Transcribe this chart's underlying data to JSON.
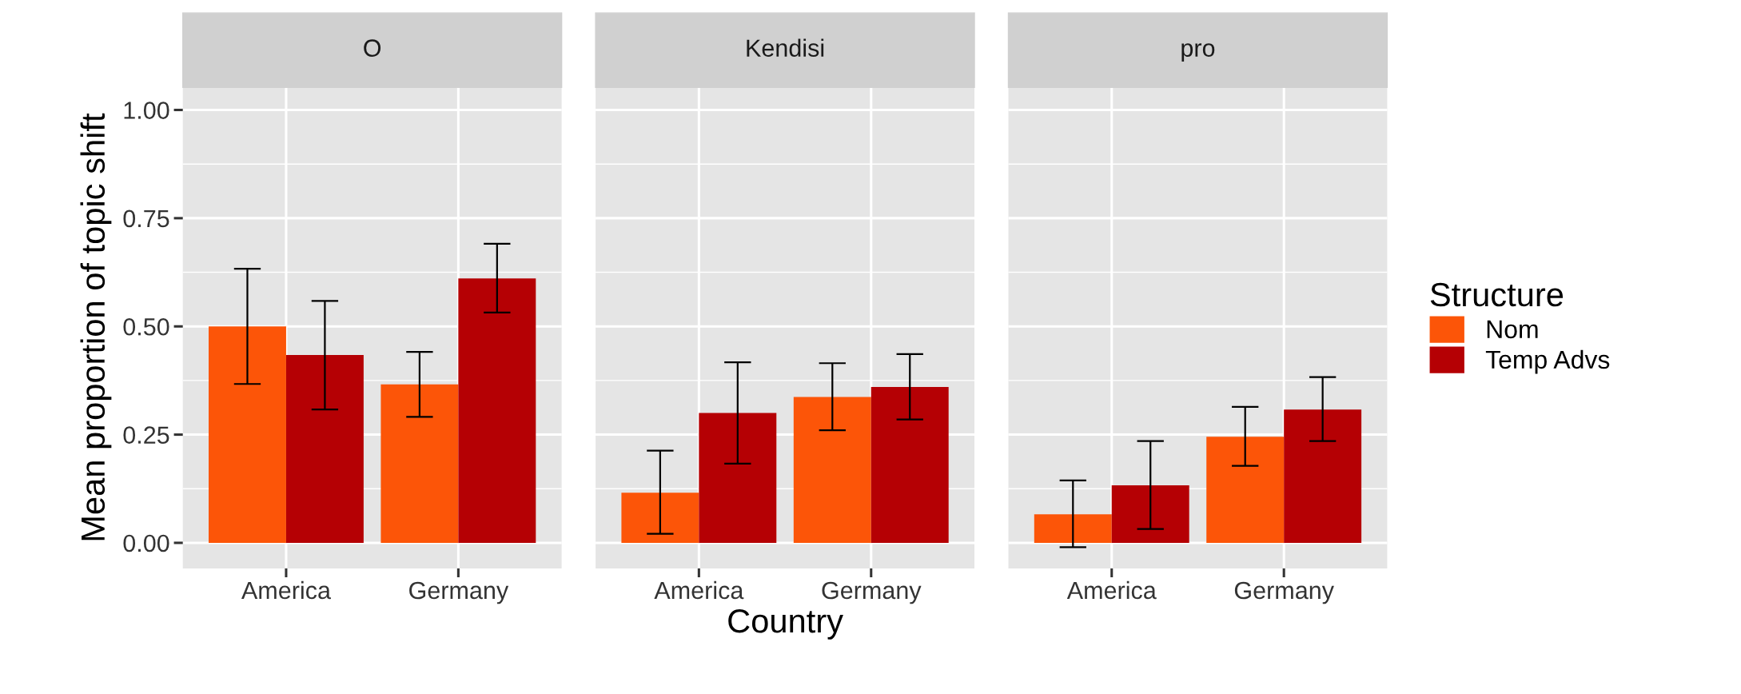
{
  "chart_data": [
    {
      "type": "bar",
      "title": "O",
      "ylabel": "Mean proportion of topic shift",
      "categories": [
        "America",
        "Germany"
      ],
      "ylim": [
        -0.059,
        1.052
      ],
      "yticks": [
        {
          "value": 0,
          "label": "0.00"
        },
        {
          "value": 0.25,
          "label": "0.25"
        },
        {
          "value": 0.5,
          "label": "0.50"
        },
        {
          "value": 0.75,
          "label": "0.75"
        },
        {
          "value": 1,
          "label": "1.00"
        }
      ],
      "grid": true,
      "series": [
        {
          "color": "#fc5508",
          "values": [
            0.5,
            0.366
          ],
          "errors": [
            [
              0.367,
              0.633
            ],
            [
              0.291,
              0.441
            ]
          ]
        },
        {
          "color": "#b50004",
          "values": [
            0.434,
            0.611
          ],
          "errors": [
            [
              0.308,
              0.559
            ],
            [
              0.532,
              0.691
            ]
          ]
        }
      ]
    },
    {
      "type": "bar",
      "title": "Kendisi",
      "xlabel": "Country",
      "categories": [
        "America",
        "Germany"
      ],
      "ylim": [
        -0.059,
        1.052
      ],
      "yticks": [
        {
          "value": 0,
          "label": null
        },
        {
          "value": 0.25,
          "label": null
        },
        {
          "value": 0.5,
          "label": null
        },
        {
          "value": 0.75,
          "label": null
        },
        {
          "value": 1,
          "label": null
        }
      ],
      "grid": true,
      "tick_labels": "x",
      "series": [
        {
          "color": "#fc5508",
          "values": [
            0.116,
            0.337
          ],
          "errors": [
            [
              0.021,
              0.213
            ],
            [
              0.26,
              0.415
            ]
          ]
        },
        {
          "color": "#b50004",
          "values": [
            0.3,
            0.36
          ],
          "errors": [
            [
              0.183,
              0.417
            ],
            [
              0.285,
              0.436
            ]
          ]
        }
      ]
    },
    {
      "type": "bar",
      "title": "pro",
      "categories": [
        "America",
        "Germany"
      ],
      "ylim": [
        -0.059,
        1.052
      ],
      "yticks": [
        {
          "value": 0,
          "label": null
        },
        {
          "value": 0.25,
          "label": null
        },
        {
          "value": 0.5,
          "label": null
        },
        {
          "value": 0.75,
          "label": null
        },
        {
          "value": 1,
          "label": null
        }
      ],
      "grid": true,
      "tick_labels": "x",
      "legend": "right",
      "legend_title": "Structure",
      "series": [
        {
          "name": "Nom",
          "color": "#fc5508",
          "values": [
            0.066,
            0.245
          ],
          "errors": [
            [
              -0.01,
              0.144
            ],
            [
              0.178,
              0.314
            ]
          ]
        },
        {
          "name": "Temp Advs",
          "color": "#b50004",
          "values": [
            0.133,
            0.308
          ],
          "errors": [
            [
              0.032,
              0.235
            ],
            [
              0.235,
              0.383
            ]
          ]
        }
      ]
    }
  ]
}
